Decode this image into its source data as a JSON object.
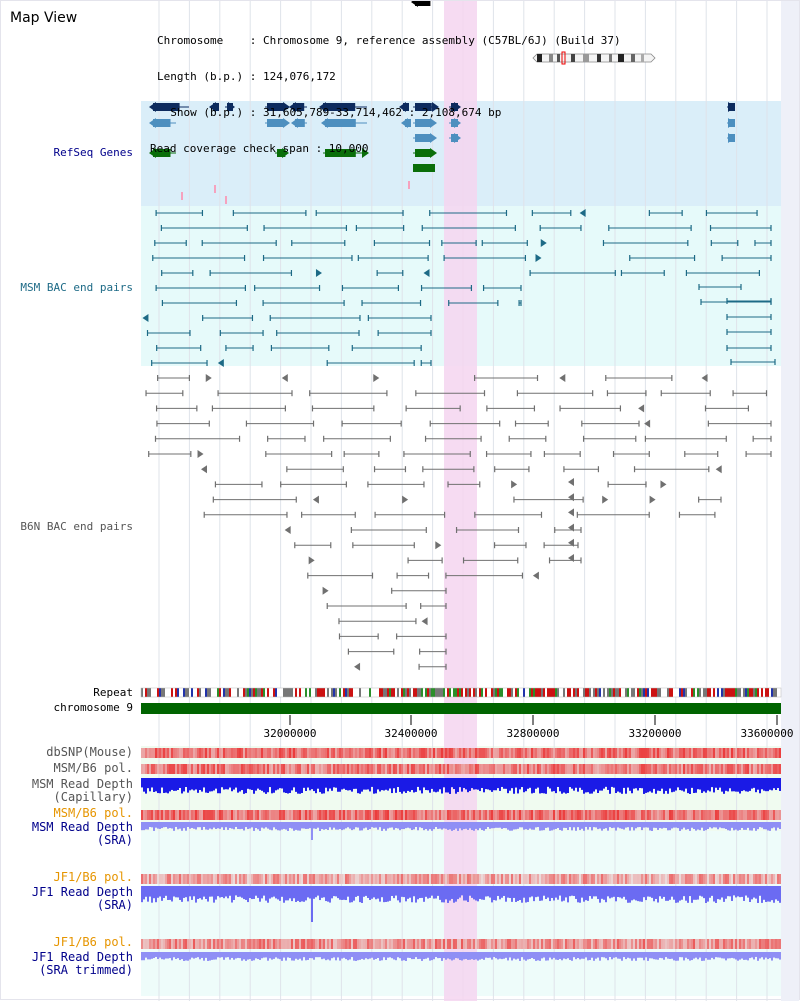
{
  "header": {
    "title": "Map View",
    "chromosome_line": "Chromosome    : Chromosome 9, reference assembly (C57BL/6J) (Build 37)",
    "length_line": "Length (b.p.) : 124,076,172",
    "show_line": "  Show (b.p.) : 31,605,789-33,714,462 : 2,108,674 bp",
    "coverage_line": "Read coverage check span : 10,000"
  },
  "tracks": {
    "refseq_genes": "RefSeq Genes",
    "msm_bac": "MSM BAC end pairs",
    "b6n_bac": "B6N BAC end pairs",
    "repeat": "Repeat",
    "chromosome": "chromosome 9",
    "dbsnp": "dbSNP(Mouse)",
    "msm_b6_pol_1": "MSM/B6 pol.",
    "msm_read_depth_cap_1": "MSM Read Depth",
    "msm_read_depth_cap_2": "(Capillary)",
    "msm_b6_pol_2": "MSM/B6 pol.",
    "msm_read_depth_sra_1": "MSM Read Depth",
    "msm_read_depth_sra_2": "(SRA)",
    "jf1_b6_pol_1": "JF1/B6 pol.",
    "jf1_read_depth_sra_1": "JF1 Read Depth",
    "jf1_read_depth_sra_2": "(SRA)",
    "jf1_b6_pol_2": "JF1/B6 pol.",
    "jf1_read_depth_trim_1": "JF1 Read Depth",
    "jf1_read_depth_trim_2": "(SRA trimmed)"
  },
  "axis": {
    "ticks": [
      "32000000",
      "32400000",
      "32800000",
      "33200000",
      "33600000"
    ]
  },
  "colors": {
    "refseq_bg": "#daeef9",
    "msm_bg": "#e6fafa",
    "highlight": "#f5d5f0",
    "dark_navy": "#0d2b5e",
    "steel_blue": "#4d8fbf",
    "green": "#0a6e0a",
    "teal": "#1d6a86",
    "gray": "#707070",
    "chrom_bar": "#006400",
    "depth_blue": "#1a1ae6",
    "depth_light": "#8f8ff5",
    "label_blue": "#00008b",
    "label_teal": "#1d6a86",
    "label_gray": "#555555",
    "label_orange": "#e69500"
  },
  "icons": {
    "chromosome_ideogram": "chromosome-ideogram-icon"
  }
}
